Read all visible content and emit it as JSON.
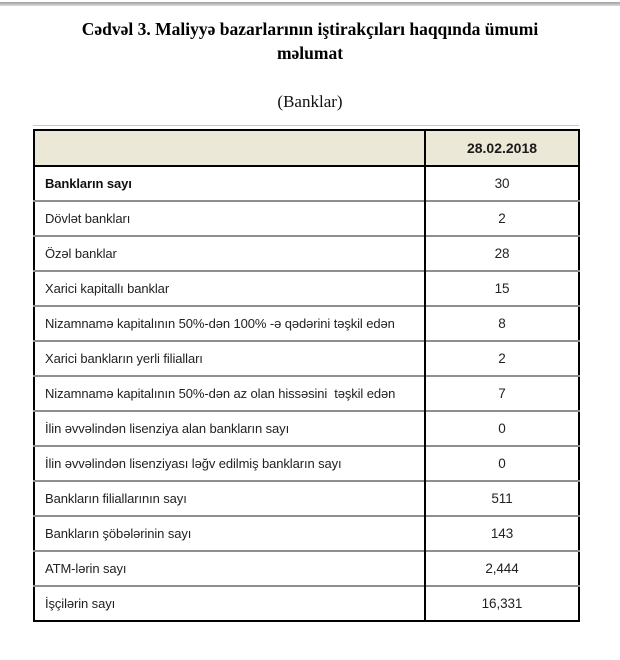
{
  "page": {
    "title": "Cədvəl 3. Maliyyə bazarlarının iştirakçıları haqqında ümumi məlumat",
    "subtitle": "(Banklar)"
  },
  "table": {
    "header": {
      "label": "",
      "date": "28.02.2018"
    },
    "rows": [
      {
        "label": "Bankların sayı",
        "value": "30",
        "bold": true
      },
      {
        "label": "Dövlət bankları",
        "value": "2",
        "bold": false
      },
      {
        "label": "Özəl banklar",
        "value": "28",
        "bold": false
      },
      {
        "label": "Xarici kapitallı banklar",
        "value": "15",
        "bold": false
      },
      {
        "label": "Nizamnamə kapitalının 50%-dən 100% -ə qədərini təşkil edən",
        "value": "8",
        "bold": false
      },
      {
        "label": "Xarici bankların yerli filialları",
        "value": "2",
        "bold": false
      },
      {
        "label": "Nizamnamə kapitalının 50%-dən az olan hissəsini  təşkil edən",
        "value": "7",
        "bold": false
      },
      {
        "label": "İlin əvvəlindən lisenziya alan bankların sayı",
        "value": "0",
        "bold": false
      },
      {
        "label": "İlin əvvəlindən lisenziyası ləğv edilmiş bankların sayı",
        "value": "0",
        "bold": false
      },
      {
        "label": "Bankların filiallarının sayı",
        "value": "511",
        "bold": false
      },
      {
        "label": "Bankların şöbələrinin sayı",
        "value": "143",
        "bold": false
      },
      {
        "label": "ATM-lərin sayı",
        "value": "2,444",
        "bold": false
      },
      {
        "label": "İşçilərin sayı",
        "value": "16,331",
        "bold": false
      }
    ]
  },
  "colors": {
    "header_bg": "#ece8d8",
    "outer_border": "#000000",
    "row_separator": "#8f8f8f",
    "text": "#222222"
  }
}
